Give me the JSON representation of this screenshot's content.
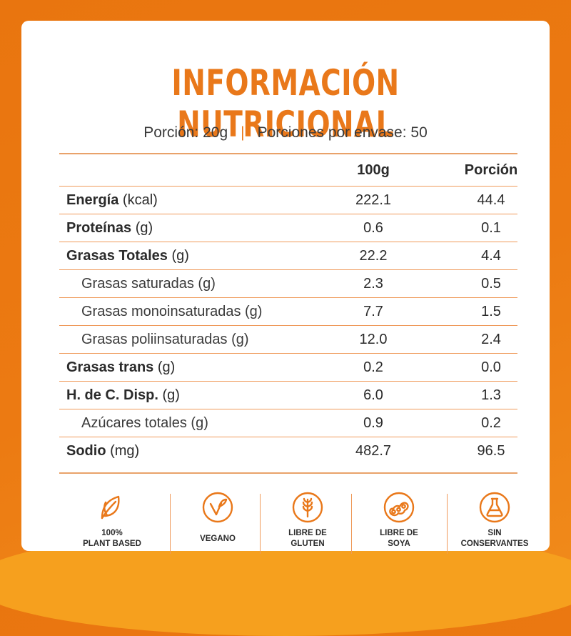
{
  "title": "INFORMACIÓN NUTRICIONAL",
  "serving": {
    "portion": "Porción: 20g",
    "separator": "|",
    "per_pack": "Porciones por envase: 50"
  },
  "table": {
    "headers": {
      "col1": "100g",
      "col2": "Porción"
    },
    "rows": [
      {
        "name": "Energía",
        "unit": "(kcal)",
        "v100": "222.1",
        "vpor": "44.4"
      },
      {
        "name": "Proteínas",
        "unit": "(g)",
        "v100": "0.6",
        "vpor": "0.1"
      },
      {
        "name": "Grasas Totales",
        "unit": "(g)",
        "v100": "22.2",
        "vpor": "4.4"
      },
      {
        "name": "Grasas saturadas (g)",
        "unit": "",
        "v100": "2.3",
        "vpor": "0.5"
      },
      {
        "name": "Grasas monoinsaturadas (g)",
        "unit": "",
        "v100": "7.7",
        "vpor": "1.5"
      },
      {
        "name": "Grasas poliinsaturadas (g)",
        "unit": "",
        "v100": "12.0",
        "vpor": "2.4"
      },
      {
        "name": "Grasas trans",
        "unit": "(g)",
        "v100": "0.2",
        "vpor": "0.0"
      },
      {
        "name": "H. de C. Disp.",
        "unit": "(g)",
        "v100": "6.0",
        "vpor": "1.3"
      },
      {
        "name": "Azúcares totales (g)",
        "unit": "",
        "v100": "0.9",
        "vpor": "0.2"
      },
      {
        "name": "Sodio",
        "unit": "(mg)",
        "v100": "482.7",
        "vpor": "96.5"
      }
    ]
  },
  "badges": [
    {
      "icon": "leaf-icon",
      "label": "100%\nPLANT BASED"
    },
    {
      "icon": "vegan-icon",
      "label": "VEGANO"
    },
    {
      "icon": "wheat-icon",
      "label": "LIBRE DE\nGLUTEN"
    },
    {
      "icon": "soybean-icon",
      "label": "LIBRE DE\nSOYA"
    },
    {
      "icon": "flask-icon",
      "label": "SIN\nCONSERVANTES"
    }
  ],
  "colors": {
    "accent": "#e9781a",
    "background": "#ec7a12",
    "text": "#2b2b2b"
  }
}
